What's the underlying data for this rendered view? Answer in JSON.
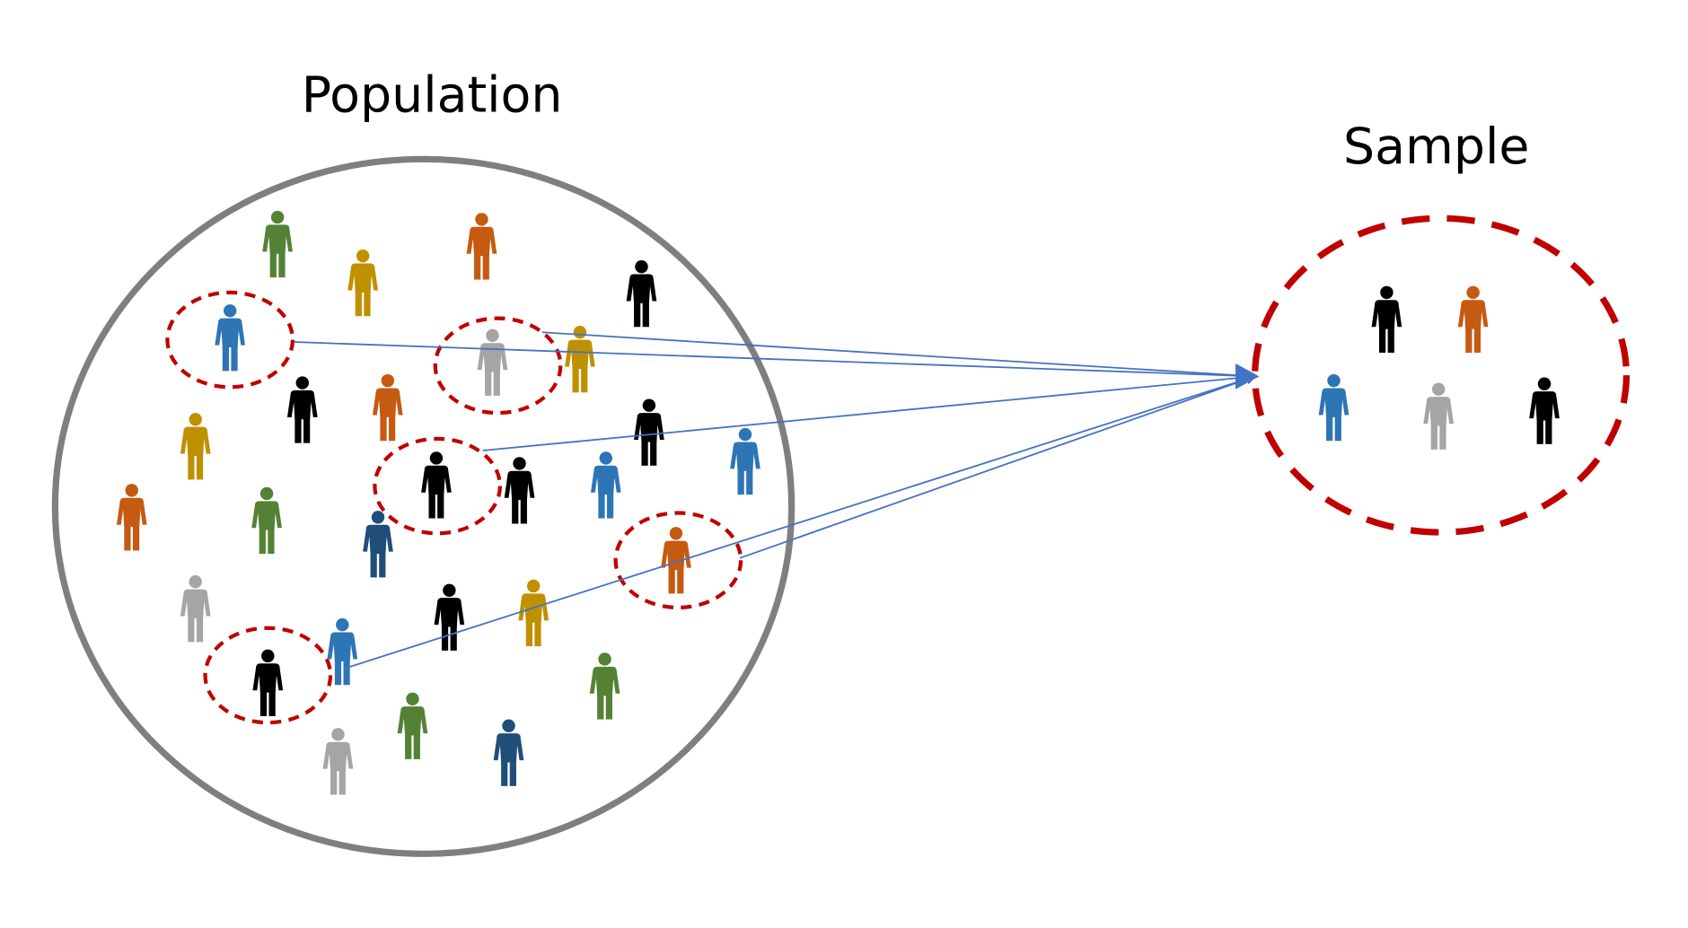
{
  "labels": {
    "population": "Population",
    "sample": "Sample"
  },
  "colors": {
    "population_border": "#7f7f7f",
    "sample_border": "#c00000",
    "selection_ring": "#c00000",
    "arrow": "#4472c4",
    "green": "#548235",
    "gold": "#bf9000",
    "orange": "#c55a11",
    "black": "#000000",
    "blue": "#2e75b6",
    "gray": "#a5a5a5",
    "navy": "#1f4e79"
  },
  "population_people": [
    "green",
    "gold",
    "orange",
    "black",
    "blue",
    "gray",
    "gold",
    "black",
    "orange",
    "gold",
    "black",
    "blue",
    "black",
    "black",
    "blue",
    "orange",
    "green",
    "navy",
    "orange",
    "gray",
    "black",
    "gold",
    "blue",
    "black",
    "green",
    "green",
    "gray",
    "navy"
  ],
  "selected_people": [
    "blue",
    "gray",
    "black",
    "orange",
    "black"
  ],
  "sample_people": [
    "black",
    "orange",
    "blue",
    "gray",
    "black"
  ]
}
